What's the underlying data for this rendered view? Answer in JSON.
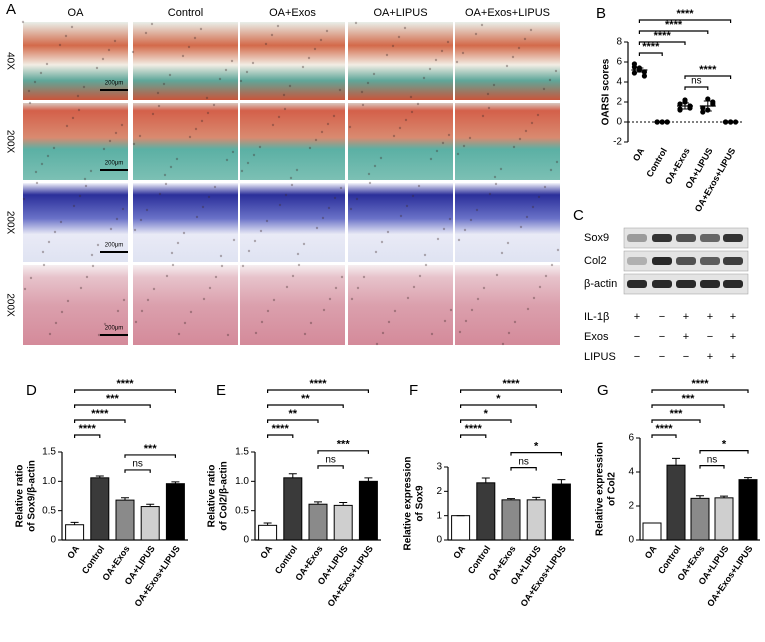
{
  "figure": {
    "panel": "A",
    "columns": [
      "OA",
      "Control",
      "OA+Exos",
      "OA+LIPUS",
      "OA+Exos+LIPUS"
    ],
    "rows": [
      "40X",
      "200X",
      "200X",
      "200X"
    ],
    "scale_bar": "200μm"
  },
  "blot": {
    "panel": "C",
    "proteins": [
      "Sox9",
      "Col2",
      "β-actin"
    ],
    "treatments": [
      {
        "name": "IL-1β",
        "signs": [
          "+",
          "−",
          "+",
          "+",
          "+"
        ]
      },
      {
        "name": "Exos",
        "signs": [
          "−",
          "−",
          "+",
          "−",
          "+"
        ]
      },
      {
        "name": "LIPUS",
        "signs": [
          "−",
          "−",
          "−",
          "+",
          "+"
        ]
      }
    ]
  },
  "chart_data": [
    {
      "type": "dot",
      "panel": "B",
      "ylabel": [
        "OARSI scores"
      ],
      "categories": [
        "OA",
        "Control",
        "OA+Exos",
        "OA+LIPUS",
        "OA+Exos+LIPUS"
      ],
      "points": [
        [
          5.8,
          5.4,
          5.0,
          4.9,
          5.2,
          4.6,
          5.5
        ],
        [
          0,
          0,
          0,
          0,
          0,
          0
        ],
        [
          1.2,
          2.0,
          1.6,
          1.3,
          2.2,
          1.4,
          1.8
        ],
        [
          1.0,
          2.3,
          1.8,
          1.4,
          1.2,
          2.0
        ],
        [
          0,
          0,
          0,
          0,
          0
        ]
      ],
      "values": [
        5.2,
        0,
        1.6,
        1.6,
        0
      ],
      "errors": [
        0.2,
        0,
        0.3,
        0.5,
        0
      ],
      "ylim": [
        -2,
        8
      ],
      "yticks": [
        -2,
        0,
        2,
        4,
        6,
        8
      ],
      "zero_line": true,
      "significance": [
        {
          "label": "****",
          "from": "OA",
          "to": "OA+Exos+LIPUS"
        },
        {
          "label": "****",
          "from": "OA",
          "to": "OA+LIPUS"
        },
        {
          "label": "****",
          "from": "OA",
          "to": "OA+Exos"
        },
        {
          "label": "****",
          "from": "OA",
          "to": "Control"
        },
        {
          "label": "****",
          "from": "OA+Exos",
          "to": "OA+Exos+LIPUS"
        },
        {
          "label": "ns",
          "from": "OA+Exos",
          "to": "OA+LIPUS"
        }
      ]
    },
    {
      "type": "bar",
      "panel": "D",
      "ylabel": [
        "Relative ratio",
        "of Sox9/β-actin"
      ],
      "categories": [
        "OA",
        "Control",
        "OA+Exos",
        "OA+LIPUS",
        "OA+Exos+LIPUS"
      ],
      "values": [
        0.26,
        1.06,
        0.68,
        0.57,
        0.96
      ],
      "errors": [
        0.04,
        0.03,
        0.04,
        0.04,
        0.03
      ],
      "colors": [
        "#ffffff",
        "#3a3a3a",
        "#8a8a8a",
        "#cfcfcf",
        "#000000"
      ],
      "ylim": [
        0,
        1.5
      ],
      "yticks": [
        0,
        0.5,
        {
          "value": 1,
          "label": "1.0"
        },
        1.5
      ],
      "significance": [
        {
          "label": "****",
          "from": "OA",
          "to": "OA+Exos+LIPUS"
        },
        {
          "label": "***",
          "from": "OA",
          "to": "OA+LIPUS"
        },
        {
          "label": "****",
          "from": "OA",
          "to": "OA+Exos"
        },
        {
          "label": "****",
          "from": "OA",
          "to": "Control"
        },
        {
          "label": "***",
          "from": "OA+Exos",
          "to": "OA+Exos+LIPUS"
        },
        {
          "label": "ns",
          "from": "OA+Exos",
          "to": "OA+LIPUS"
        }
      ]
    },
    {
      "type": "bar",
      "panel": "E",
      "ylabel": [
        "Relative ratio",
        "of Col2/β-actin"
      ],
      "categories": [
        "OA",
        "Control",
        "OA+Exos",
        "OA+LIPUS",
        "OA+Exos+LIPUS"
      ],
      "values": [
        0.25,
        1.06,
        0.61,
        0.59,
        1.0
      ],
      "errors": [
        0.04,
        0.07,
        0.04,
        0.05,
        0.06
      ],
      "colors": [
        "#ffffff",
        "#3a3a3a",
        "#8a8a8a",
        "#cfcfcf",
        "#000000"
      ],
      "ylim": [
        0,
        1.5
      ],
      "yticks": [
        0,
        0.5,
        {
          "value": 1,
          "label": "1.0"
        },
        1.5
      ],
      "significance": [
        {
          "label": "****",
          "from": "OA",
          "to": "OA+Exos+LIPUS"
        },
        {
          "label": "**",
          "from": "OA",
          "to": "OA+LIPUS"
        },
        {
          "label": "**",
          "from": "OA",
          "to": "OA+Exos"
        },
        {
          "label": "****",
          "from": "OA",
          "to": "Control"
        },
        {
          "label": "***",
          "from": "OA+Exos",
          "to": "OA+Exos+LIPUS"
        },
        {
          "label": "ns",
          "from": "OA+Exos",
          "to": "OA+LIPUS"
        }
      ]
    },
    {
      "type": "bar",
      "panel": "F",
      "ylabel": [
        "Relative expression",
        "of Sox9"
      ],
      "categories": [
        "OA",
        "Control",
        "OA+Exos",
        "OA+LIPUS",
        "OA+Exos+LIPUS"
      ],
      "values": [
        1.0,
        2.35,
        1.65,
        1.65,
        2.3
      ],
      "errors": [
        0,
        0.2,
        0.05,
        0.1,
        0.18
      ],
      "colors": [
        "#ffffff",
        "#3a3a3a",
        "#8a8a8a",
        "#cfcfcf",
        "#000000"
      ],
      "ylim": [
        0,
        3
      ],
      "yticks": [
        0,
        1,
        2,
        3
      ],
      "significance": [
        {
          "label": "****",
          "from": "OA",
          "to": "OA+Exos+LIPUS"
        },
        {
          "label": "*",
          "from": "OA",
          "to": "OA+LIPUS"
        },
        {
          "label": "*",
          "from": "OA",
          "to": "OA+Exos"
        },
        {
          "label": "****",
          "from": "OA",
          "to": "Control"
        },
        {
          "label": "*",
          "from": "OA+Exos",
          "to": "OA+Exos+LIPUS"
        },
        {
          "label": "ns",
          "from": "OA+Exos",
          "to": "OA+LIPUS"
        }
      ]
    },
    {
      "type": "bar",
      "panel": "G",
      "ylabel": [
        "Relative expression",
        "of Col2"
      ],
      "categories": [
        "OA",
        "Control",
        "OA+Exos",
        "OA+LIPUS",
        "OA+Exos+LIPUS"
      ],
      "values": [
        1.0,
        4.4,
        2.45,
        2.48,
        3.55
      ],
      "errors": [
        0,
        0.4,
        0.15,
        0.1,
        0.12
      ],
      "colors": [
        "#ffffff",
        "#3a3a3a",
        "#8a8a8a",
        "#cfcfcf",
        "#000000"
      ],
      "ylim": [
        0,
        6
      ],
      "yticks": [
        0,
        2,
        4,
        6
      ],
      "significance": [
        {
          "label": "****",
          "from": "OA",
          "to": "OA+Exos+LIPUS"
        },
        {
          "label": "***",
          "from": "OA",
          "to": "OA+LIPUS"
        },
        {
          "label": "***",
          "from": "OA",
          "to": "OA+Exos"
        },
        {
          "label": "****",
          "from": "OA",
          "to": "Control"
        },
        {
          "label": "*",
          "from": "OA+Exos",
          "to": "OA+Exos+LIPUS"
        },
        {
          "label": "ns",
          "from": "OA+Exos",
          "to": "OA+LIPUS"
        }
      ]
    }
  ]
}
